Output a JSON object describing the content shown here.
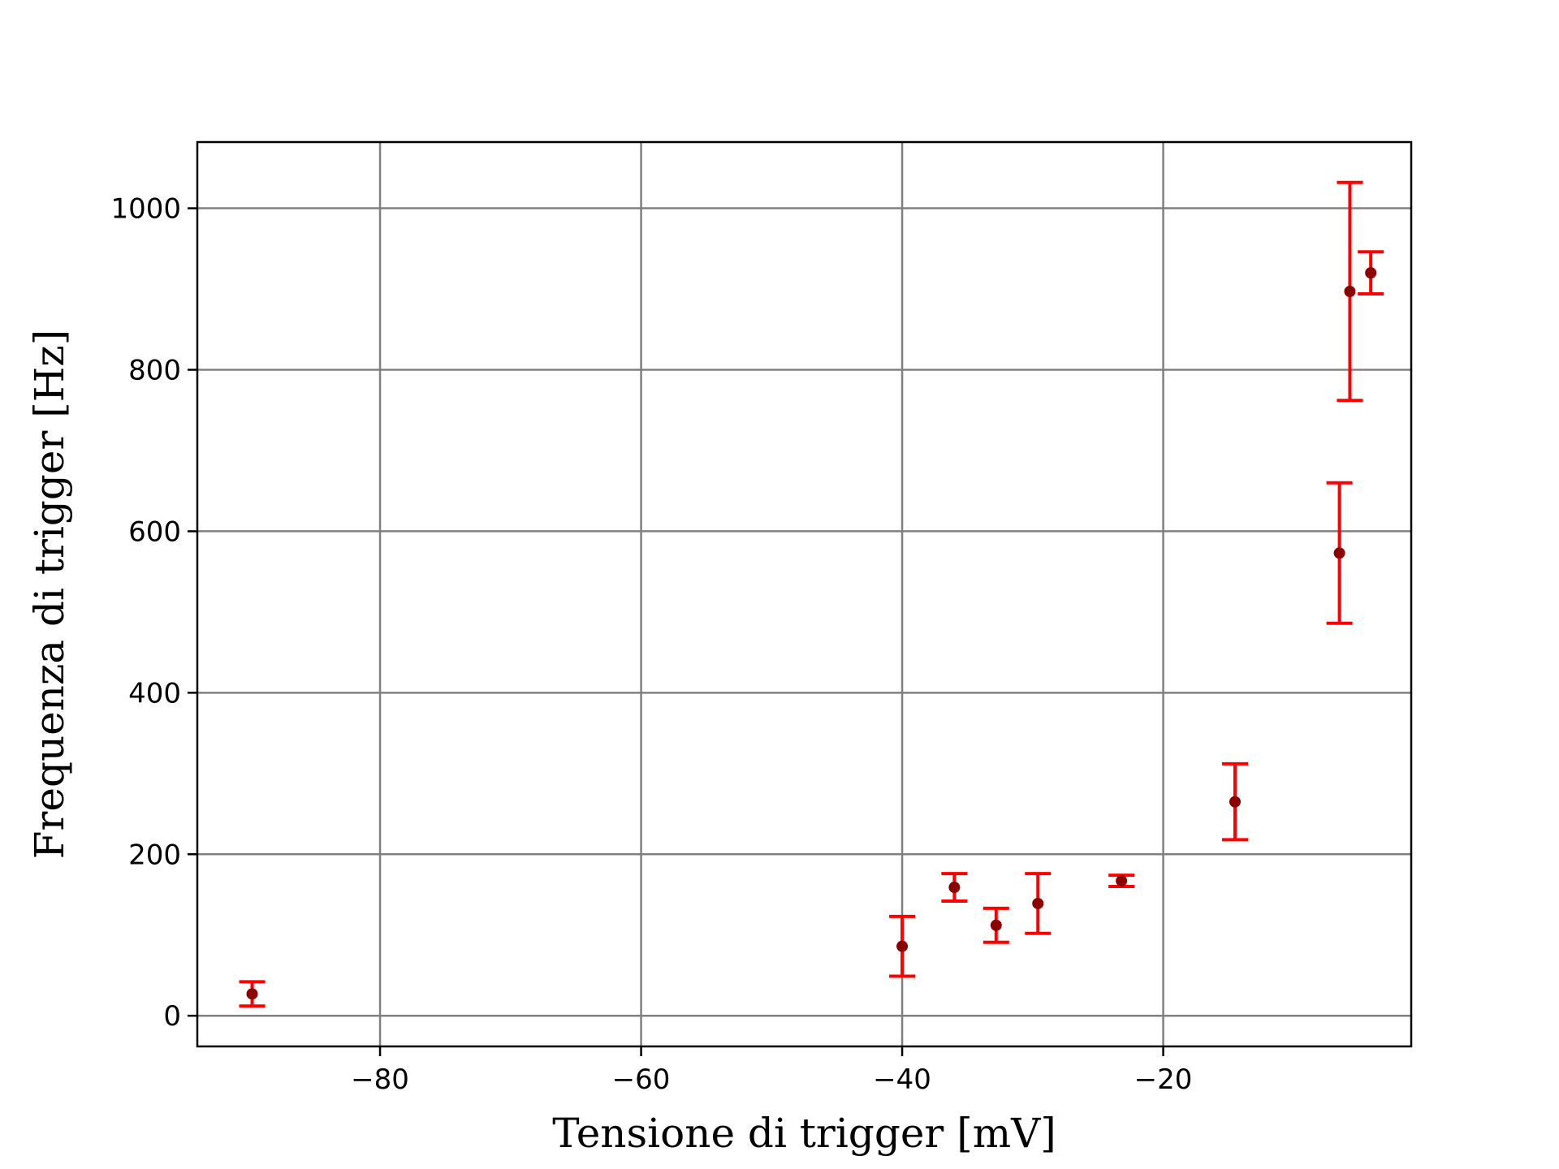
{
  "chart_data": {
    "type": "scatter",
    "title": "",
    "xlabel": "Tensione di trigger [mV]",
    "ylabel": "Frequenza di trigger [Hz]",
    "xlim": [
      -94,
      -1
    ],
    "ylim": [
      -38,
      1082
    ],
    "xticks": [
      -80,
      -60,
      -40,
      -20
    ],
    "xtick_labels": [
      "−80",
      "−60",
      "−40",
      "−20"
    ],
    "yticks": [
      0,
      200,
      400,
      600,
      800,
      1000
    ],
    "ytick_labels": [
      "0",
      "200",
      "400",
      "600",
      "800",
      "1000"
    ],
    "grid": true,
    "legend": "none",
    "colors": {
      "marker": "#8b0000",
      "errorbar": "#ff0000",
      "grid": "#808080",
      "axes": "#000000"
    },
    "series": [
      {
        "points": [
          {
            "x": -89.8,
            "y": 27,
            "yerr": 15
          },
          {
            "x": -40.0,
            "y": 86,
            "yerr": 37
          },
          {
            "x": -36.0,
            "y": 159,
            "yerr": 17
          },
          {
            "x": -32.8,
            "y": 112,
            "yerr": 21
          },
          {
            "x": -29.6,
            "y": 139,
            "yerr": 37
          },
          {
            "x": -23.2,
            "y": 167,
            "yerr": 7
          },
          {
            "x": -14.5,
            "y": 265,
            "yerr": 47
          },
          {
            "x": -6.5,
            "y": 573,
            "yerr": 87
          },
          {
            "x": -5.7,
            "y": 897,
            "yerr": 135
          },
          {
            "x": -4.1,
            "y": 920,
            "yerr": 26
          }
        ]
      }
    ]
  }
}
